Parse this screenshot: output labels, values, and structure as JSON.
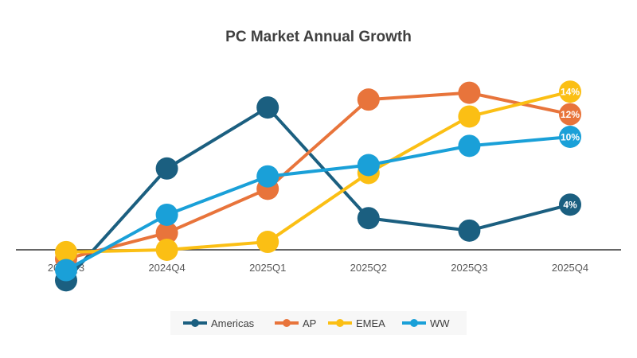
{
  "chart_data": {
    "type": "line",
    "title": "PC Market Annual Growth",
    "categories": [
      "2024Q3",
      "2024Q4",
      "2025Q1",
      "2025Q2",
      "2025Q3",
      "2025Q4"
    ],
    "ylim": [
      -4,
      16
    ],
    "grid": false,
    "legend": "bottom",
    "series": [
      {
        "name": "Americas",
        "color": "#1b5f80",
        "values": [
          -2.7,
          7.2,
          12.6,
          2.8,
          1.7,
          4
        ],
        "end_label": "4%"
      },
      {
        "name": "AP",
        "color": "#e8743b",
        "values": [
          -0.8,
          1.5,
          5.4,
          13.3,
          13.9,
          12
        ],
        "end_label": "12%"
      },
      {
        "name": "EMEA",
        "color": "#fbbf14",
        "values": [
          -0.2,
          0,
          0.7,
          6.8,
          11.8,
          14
        ],
        "end_label": "14%"
      },
      {
        "name": "WW",
        "color": "#1aa0d8",
        "values": [
          -1.8,
          3.1,
          6.5,
          7.5,
          9.2,
          10
        ],
        "end_label": "10%"
      }
    ]
  }
}
